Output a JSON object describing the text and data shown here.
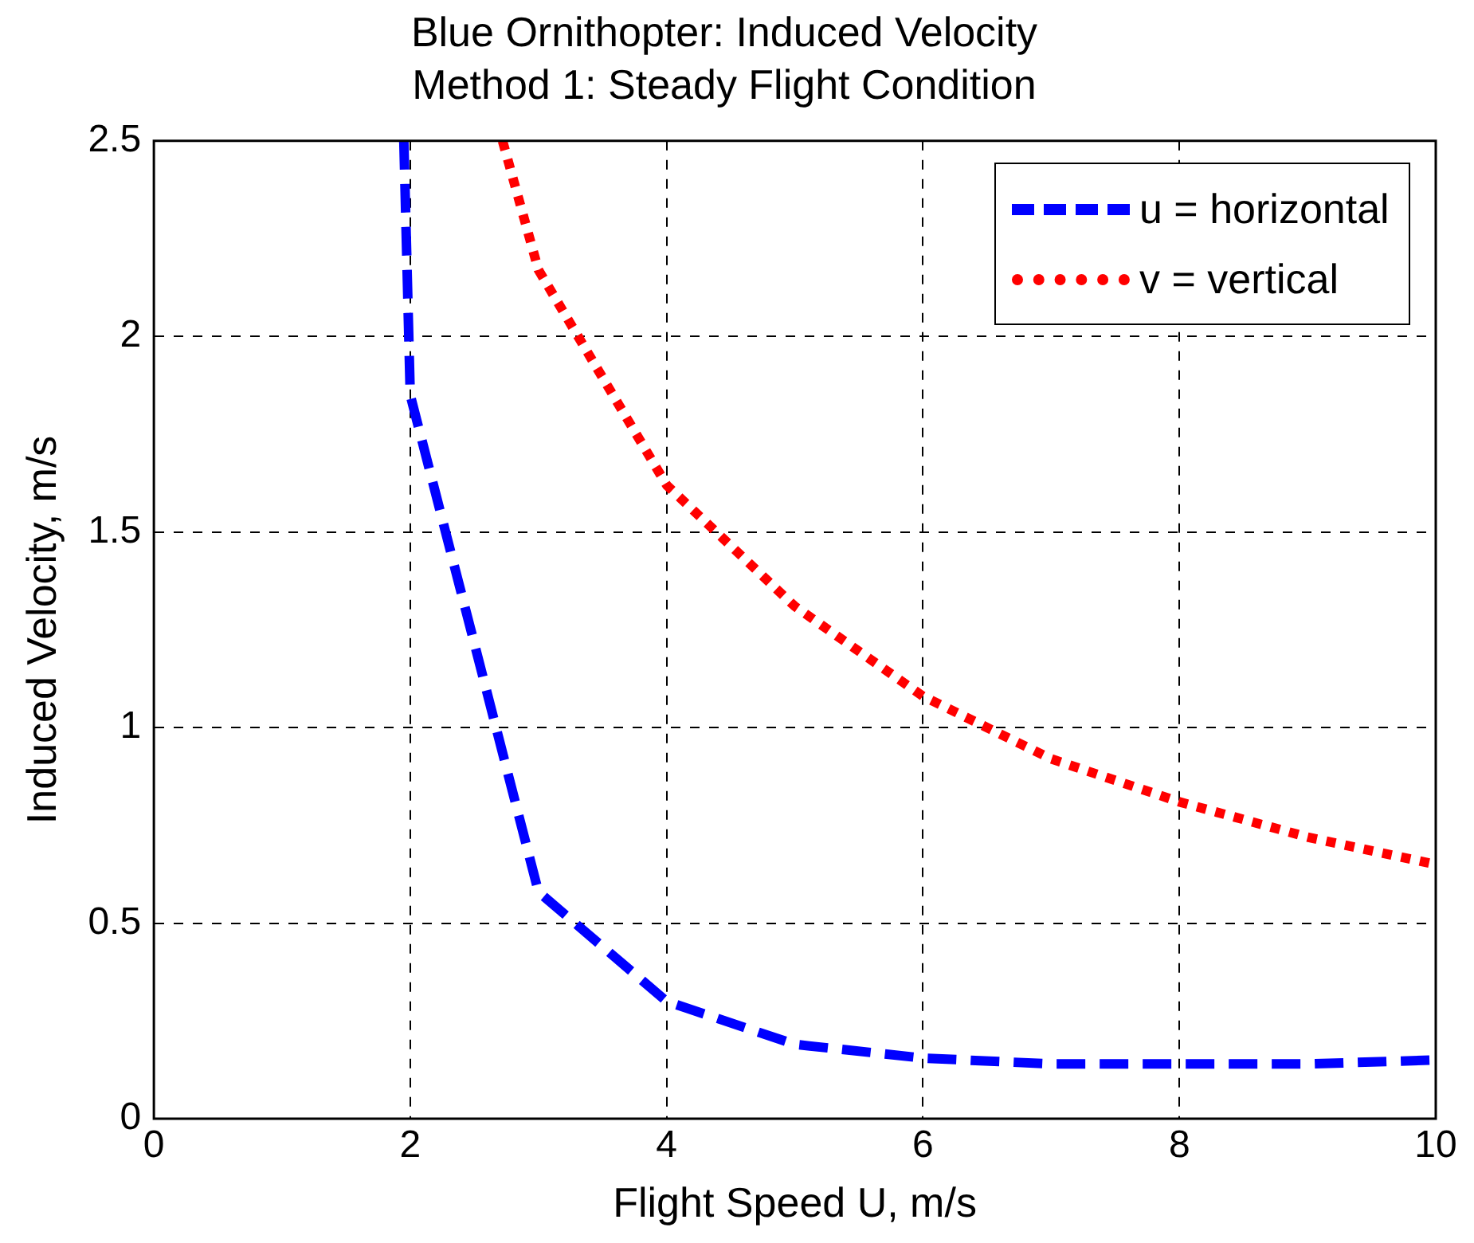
{
  "chart_data": {
    "type": "line",
    "title": "Blue Ornithopter: Induced Velocity",
    "subtitle": "Method 1: Steady Flight Condition",
    "xlabel": "Flight Speed U, m/s",
    "ylabel": "Induced Velocity, m/s",
    "xlim": [
      0,
      10
    ],
    "xticks": [
      0,
      2,
      4,
      6,
      8,
      10
    ],
    "ylim": [
      0,
      2.5
    ],
    "yticks": [
      0,
      0.5,
      1,
      1.5,
      2,
      2.5
    ],
    "grid": true,
    "legend": "top right",
    "marker": "none",
    "series": [
      {
        "name": "u = horizontal",
        "color": "#0000ff",
        "line_style": "dashed",
        "x": [
          1.95,
          2,
          3,
          4,
          5,
          6,
          7,
          8,
          9,
          10
        ],
        "values": [
          2.5,
          1.85,
          0.58,
          0.3,
          0.19,
          0.155,
          0.14,
          0.14,
          0.14,
          0.15
        ]
      },
      {
        "name": "v = vertical",
        "color": "#ff0000",
        "line_style": "dotted",
        "x": [
          2.72,
          3,
          4,
          5,
          6,
          7,
          8,
          9,
          10
        ],
        "values": [
          2.5,
          2.17,
          1.62,
          1.31,
          1.08,
          0.92,
          0.81,
          0.72,
          0.65
        ]
      }
    ]
  }
}
